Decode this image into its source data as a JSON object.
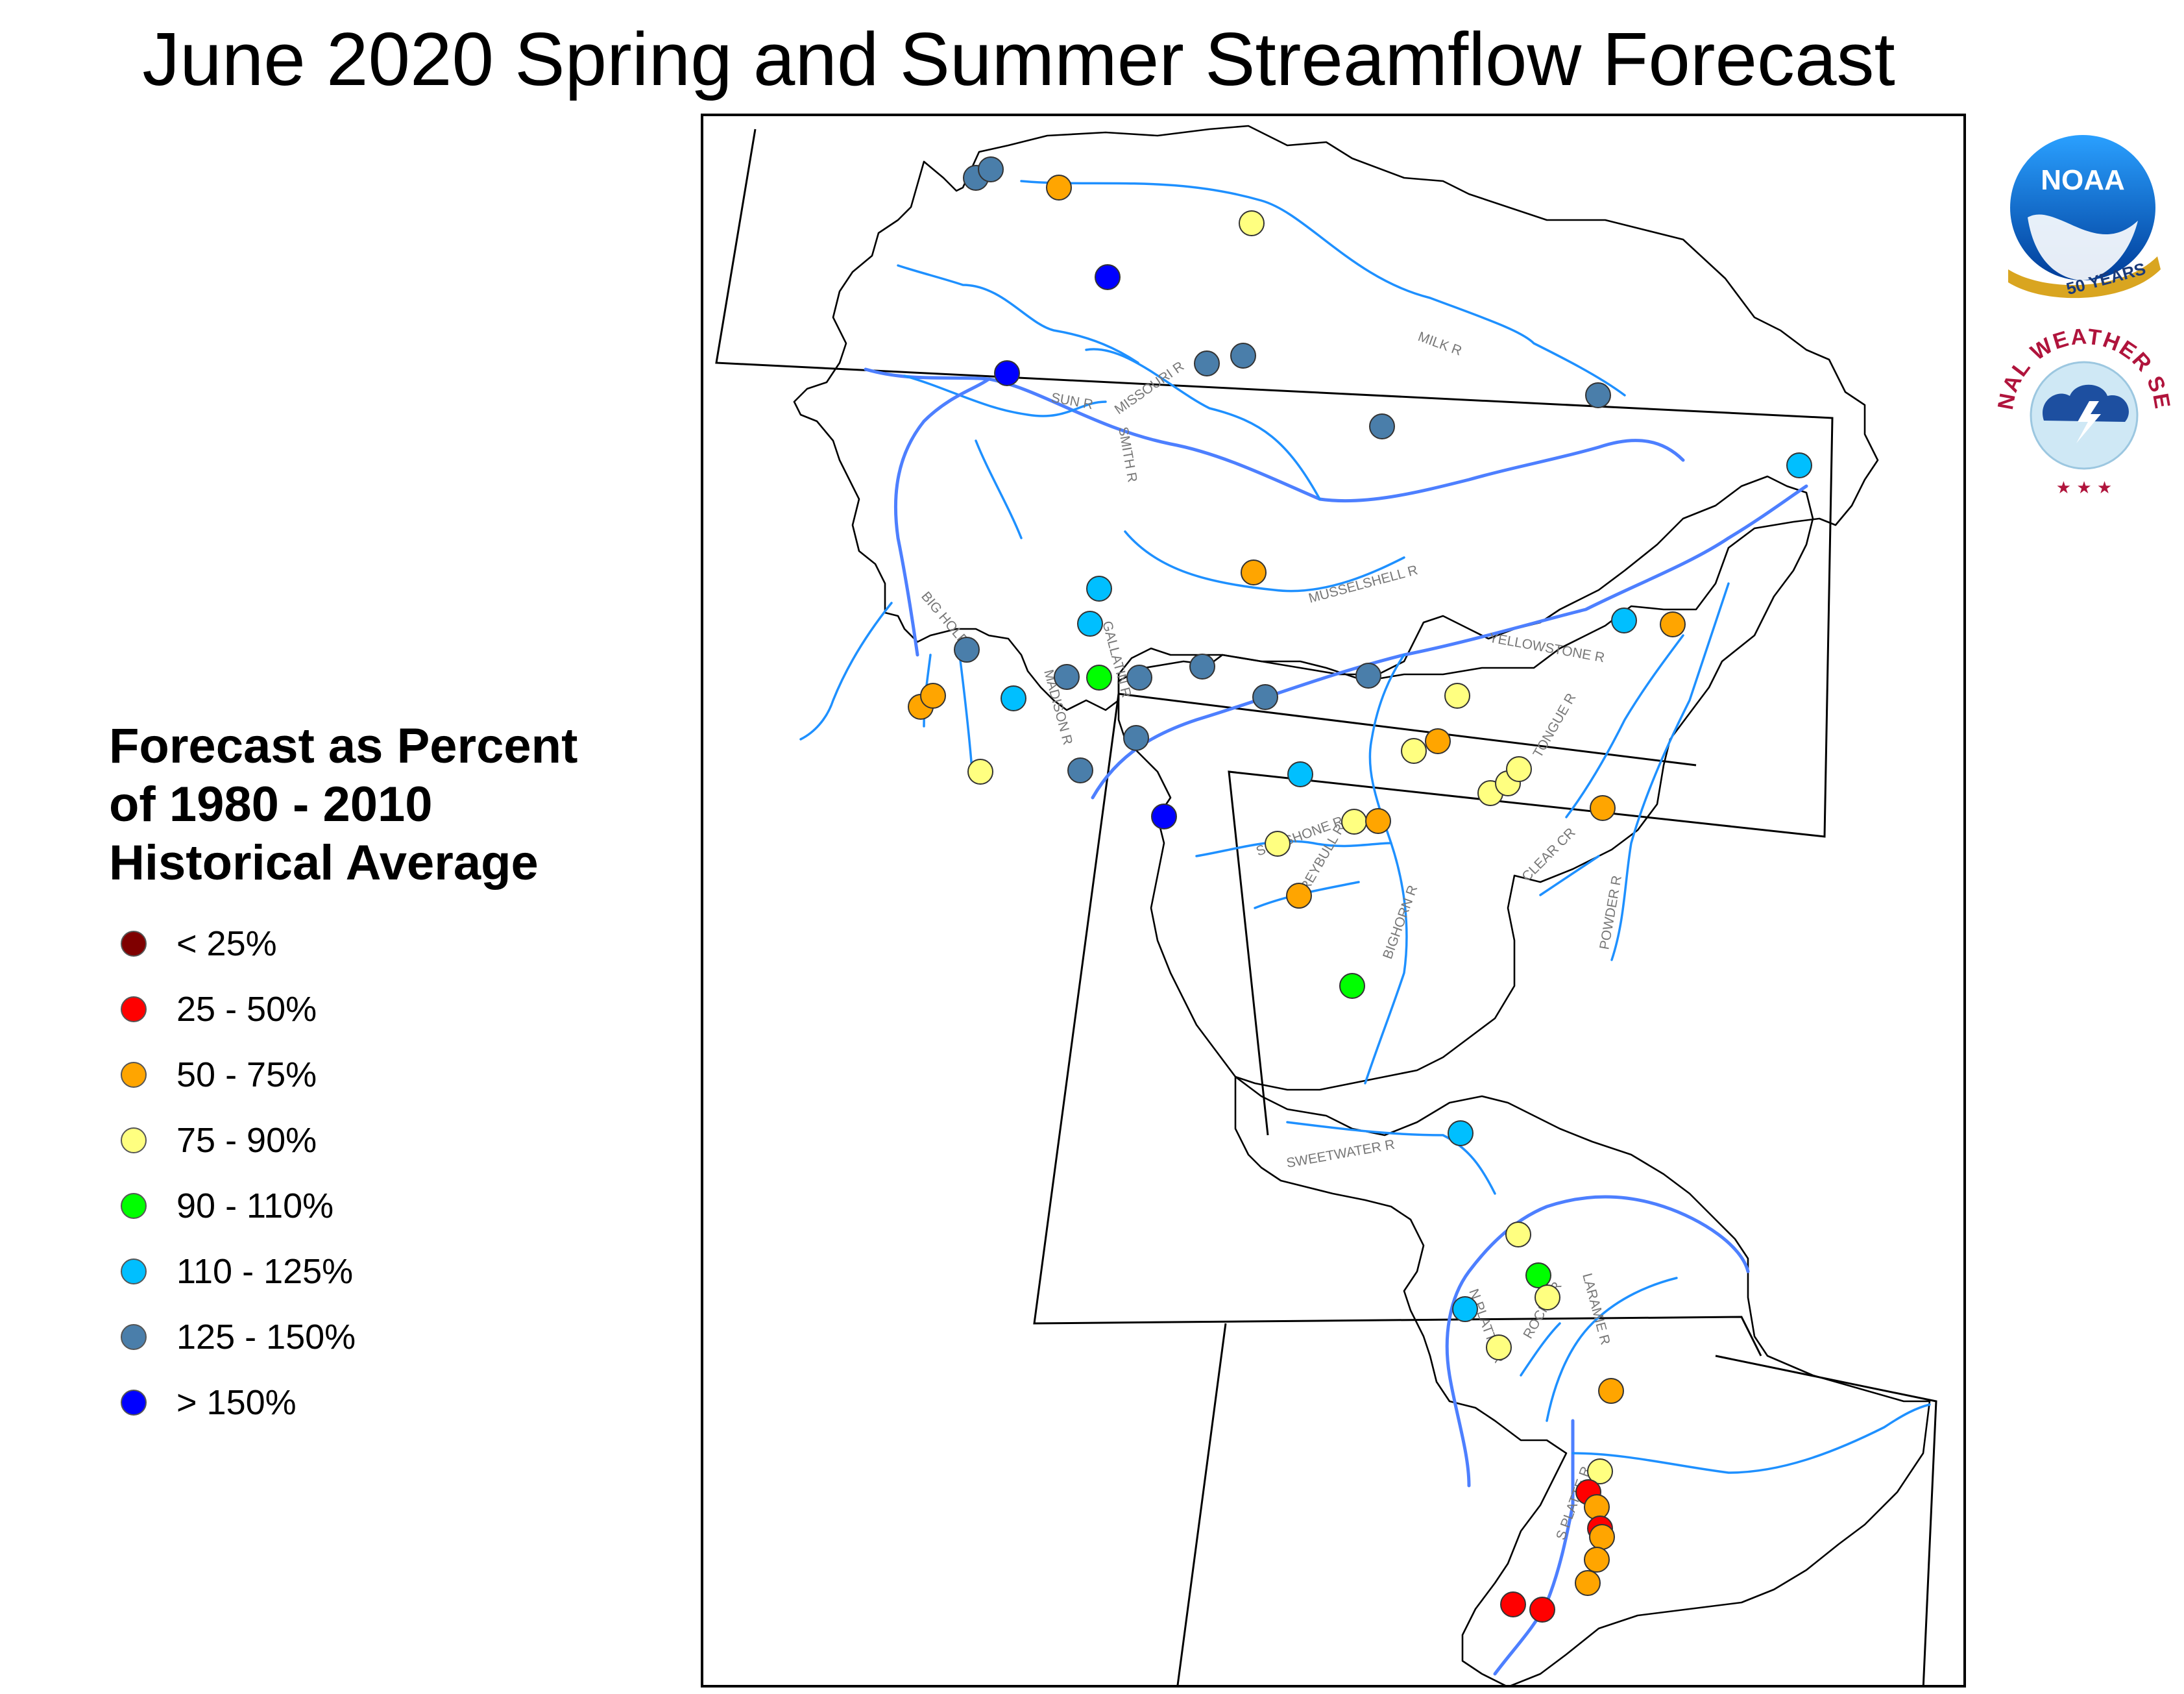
{
  "title": "June 2020 Spring and Summer Streamflow Forecast",
  "legend": {
    "title_lines": [
      "Forecast as Percent",
      "of 1980 - 2010",
      "Historical Average"
    ],
    "items": [
      {
        "label": "< 25%",
        "color": "#7f0000"
      },
      {
        "label": "25 - 50%",
        "color": "#ff0000"
      },
      {
        "label": "50 - 75%",
        "color": "#ffa500"
      },
      {
        "label": "75 - 90%",
        "color": "#ffff80"
      },
      {
        "label": "90 - 110%",
        "color": "#00ff00"
      },
      {
        "label": "110 - 125%",
        "color": "#00bfff"
      },
      {
        "label": "125 - 150%",
        "color": "#4a7eaa"
      },
      {
        "label": "> 150%",
        "color": "#0000ff"
      }
    ]
  },
  "rivers": [
    "MILK R",
    "SUN R",
    "MISSOURI R",
    "SMITH R",
    "MUSSELSHELL R",
    "BIG HOLE R",
    "GALLATIN R",
    "MADISON R",
    "YELLOWSTONE R",
    "TONGUE R",
    "SHOSHONE R",
    "GREYBULL R",
    "BIGHORN R",
    "CLEAR CR",
    "POWDER R",
    "SWEETWATER R",
    "ROCK CR",
    "LARAMIE R",
    "N PLATTE R",
    "S PLATTE R"
  ],
  "logos": {
    "noaa_text": "NOAA",
    "noaa_anniversary": "50 YEARS",
    "nws_text": "NATIONAL WEATHER SERVICE"
  },
  "sites": [
    {
      "category": "125 - 150%",
      "color": "#4a7eaa"
    },
    {
      "category": "125 - 150%",
      "color": "#4a7eaa"
    },
    {
      "category": "50 - 75%",
      "color": "#ffa500"
    },
    {
      "category": "75 - 90%",
      "color": "#ffff80"
    },
    {
      "category": "> 150%",
      "color": "#0000ff"
    },
    {
      "category": "> 150%",
      "color": "#0000ff"
    },
    {
      "category": "125 - 150%",
      "color": "#4a7eaa"
    },
    {
      "category": "125 - 150%",
      "color": "#4a7eaa"
    },
    {
      "category": "125 - 150%",
      "color": "#4a7eaa"
    },
    {
      "category": "125 - 150%",
      "color": "#4a7eaa"
    },
    {
      "category": "110 - 125%",
      "color": "#00bfff"
    },
    {
      "category": "50 - 75%",
      "color": "#ffa500"
    },
    {
      "category": "110 - 125%",
      "color": "#00bfff"
    },
    {
      "category": "110 - 125%",
      "color": "#00bfff"
    },
    {
      "category": "125 - 150%",
      "color": "#4a7eaa"
    },
    {
      "category": "50 - 75%",
      "color": "#ffa500"
    },
    {
      "category": "50 - 75%",
      "color": "#ffa500"
    },
    {
      "category": "110 - 125%",
      "color": "#00bfff"
    },
    {
      "category": "125 - 150%",
      "color": "#4a7eaa"
    },
    {
      "category": "90 - 110%",
      "color": "#00ff00"
    },
    {
      "category": "75 - 90%",
      "color": "#ffff80"
    },
    {
      "category": "125 - 150%",
      "color": "#4a7eaa"
    },
    {
      "category": "125 - 150%",
      "color": "#4a7eaa"
    },
    {
      "category": "125 - 150%",
      "color": "#4a7eaa"
    },
    {
      "category": "125 - 150%",
      "color": "#4a7eaa"
    },
    {
      "category": "125 - 150%",
      "color": "#4a7eaa"
    },
    {
      "category": "125 - 150%",
      "color": "#4a7eaa"
    },
    {
      "category": "> 150%",
      "color": "#0000ff"
    },
    {
      "category": "110 - 125%",
      "color": "#00bfff"
    },
    {
      "category": "50 - 75%",
      "color": "#ffa500"
    },
    {
      "category": "75 - 90%",
      "color": "#ffff80"
    },
    {
      "category": "75 - 90%",
      "color": "#ffff80"
    },
    {
      "category": "110 - 125%",
      "color": "#00bfff"
    },
    {
      "category": "50 - 75%",
      "color": "#ffa500"
    },
    {
      "category": "75 - 90%",
      "color": "#ffff80"
    },
    {
      "category": "75 - 90%",
      "color": "#ffff80"
    },
    {
      "category": "75 - 90%",
      "color": "#ffff80"
    },
    {
      "category": "75 - 90%",
      "color": "#ffff80"
    },
    {
      "category": "50 - 75%",
      "color": "#ffa500"
    },
    {
      "category": "75 - 90%",
      "color": "#ffff80"
    },
    {
      "category": "50 - 75%",
      "color": "#ffa500"
    },
    {
      "category": "50 - 75%",
      "color": "#ffa500"
    },
    {
      "category": "90 - 110%",
      "color": "#00ff00"
    },
    {
      "category": "110 - 125%",
      "color": "#00bfff"
    },
    {
      "category": "75 - 90%",
      "color": "#ffff80"
    },
    {
      "category": "110 - 125%",
      "color": "#00bfff"
    },
    {
      "category": "90 - 110%",
      "color": "#00ff00"
    },
    {
      "category": "75 - 90%",
      "color": "#ffff80"
    },
    {
      "category": "75 - 90%",
      "color": "#ffff80"
    },
    {
      "category": "50 - 75%",
      "color": "#ffa500"
    },
    {
      "category": "75 - 90%",
      "color": "#ffff80"
    },
    {
      "category": "25 - 50%",
      "color": "#ff0000"
    },
    {
      "category": "50 - 75%",
      "color": "#ffa500"
    },
    {
      "category": "25 - 50%",
      "color": "#ff0000"
    },
    {
      "category": "50 - 75%",
      "color": "#ffa500"
    },
    {
      "category": "50 - 75%",
      "color": "#ffa500"
    },
    {
      "category": "50 - 75%",
      "color": "#ffa500"
    },
    {
      "category": "25 - 50%",
      "color": "#ff0000"
    },
    {
      "category": "25 - 50%",
      "color": "#ff0000"
    }
  ]
}
